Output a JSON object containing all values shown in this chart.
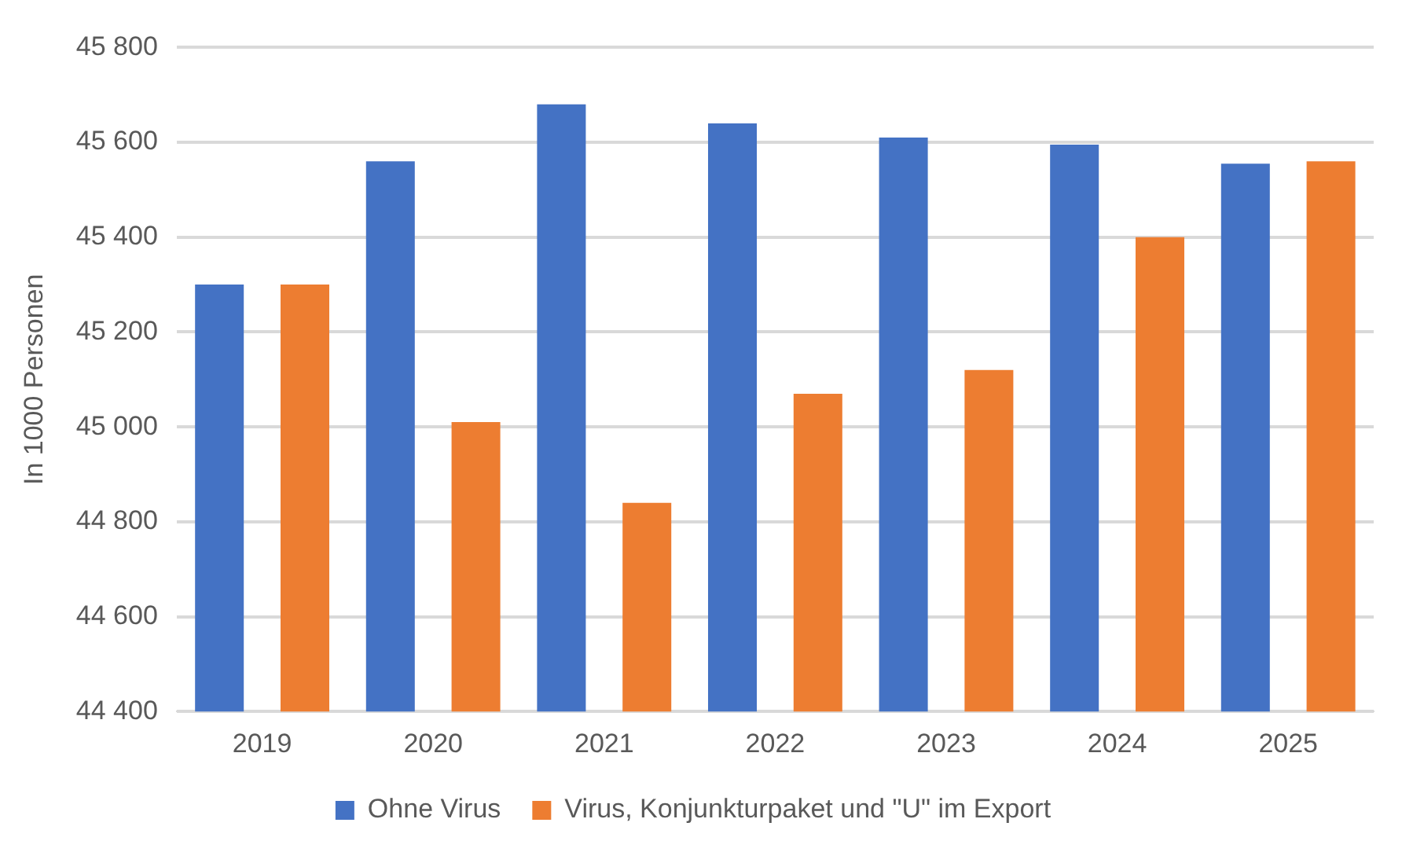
{
  "chart_data": {
    "type": "bar",
    "ylabel": "In 1000 Personen",
    "categories": [
      "2019",
      "2020",
      "2021",
      "2022",
      "2023",
      "2024",
      "2025"
    ],
    "series": [
      {
        "name": "Ohne Virus",
        "color": "#4472c4",
        "values": [
          45300,
          45560,
          45680,
          45640,
          45610,
          45595,
          45555
        ]
      },
      {
        "name": "Virus, Konjunkturpaket und \"U\" im Export",
        "color": "#ed7d31",
        "values": [
          45300,
          45010,
          44840,
          45070,
          45120,
          45400,
          45560
        ]
      }
    ],
    "ylim": [
      44400,
      45800
    ],
    "yticks": [
      {
        "value": 44400,
        "label": "44 400"
      },
      {
        "value": 44600,
        "label": "44 600"
      },
      {
        "value": 44800,
        "label": "44 800"
      },
      {
        "value": 45000,
        "label": "45 000"
      },
      {
        "value": 45200,
        "label": "45 200"
      },
      {
        "value": 45400,
        "label": "45 400"
      },
      {
        "value": 45600,
        "label": "45 600"
      },
      {
        "value": 45800,
        "label": "45 800"
      }
    ],
    "grid": "y",
    "legend": "bottom"
  }
}
